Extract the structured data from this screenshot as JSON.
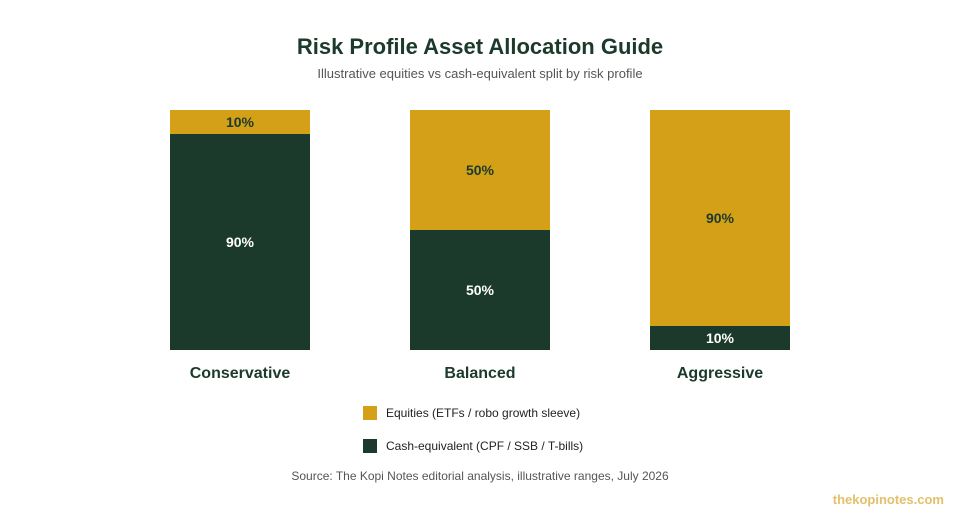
{
  "title": "Risk Profile Asset Allocation Guide",
  "subtitle": "Illustrative equities vs cash-equivalent split by risk profile",
  "source": "Source: The Kopi Notes editorial analysis, illustrative ranges, July 2026",
  "brand": "thekopinotes.com",
  "colors": {
    "equities": "#d4a017",
    "cash": "#1b3a2b",
    "brand": "#e3c06a"
  },
  "chart_data": {
    "type": "bar",
    "stacked": true,
    "normalized_percent": true,
    "categories": [
      "Conservative",
      "Balanced",
      "Aggressive"
    ],
    "series": [
      {
        "name": "Cash-equivalent (CPF / SSB / T-bills)",
        "values": [
          90,
          50,
          10
        ],
        "color": "#1b3a2b",
        "label_color": "#ffffff"
      },
      {
        "name": "Equities (ETFs / robo growth sleeve)",
        "values": [
          10,
          50,
          90
        ],
        "color": "#d4a017",
        "label_color": "#1b3a2b"
      }
    ],
    "legend": {
      "placement": "bottom-center",
      "items": [
        "Equities (ETFs / robo growth sleeve)",
        "Cash-equivalent (CPF / SSB / T-bills)"
      ]
    },
    "ylim": [
      0,
      100
    ],
    "grid": false
  }
}
